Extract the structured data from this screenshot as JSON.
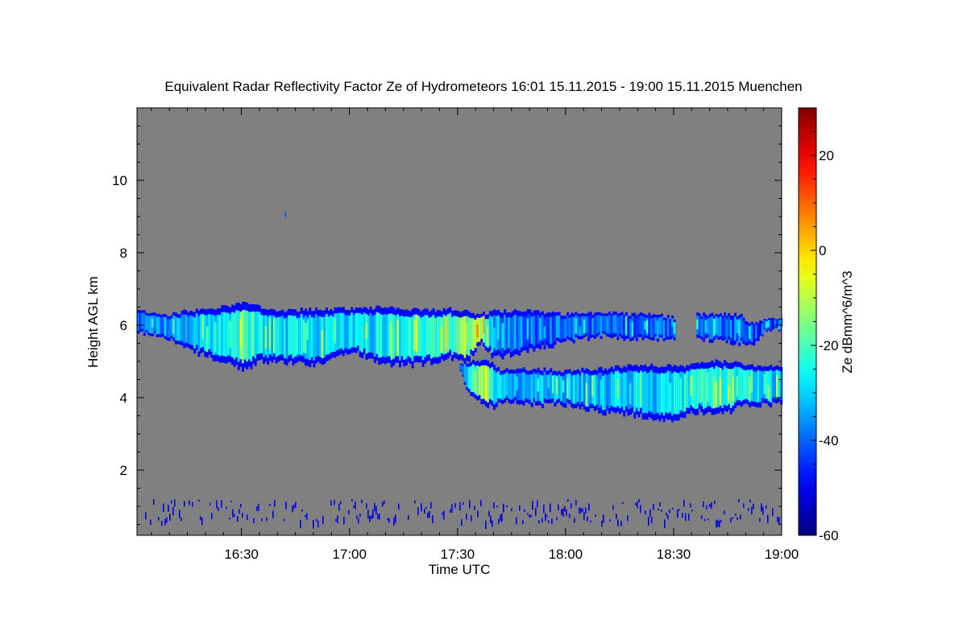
{
  "chart_data": {
    "type": "heatmap",
    "title": "Equivalent Radar Reflectivity Factor Ze of Hydrometeors   16:01 15.11.2015 - 19:00 15.11.2015 Muenchen",
    "xlabel": "Time UTC",
    "ylabel": "Height AGL km",
    "colorbar_label": "Ze dBmm^6/m^3",
    "x_range_minutes_utc": [
      961,
      1140
    ],
    "x_ticks": [
      {
        "label": "16:30",
        "value": 990
      },
      {
        "label": "17:00",
        "value": 1020
      },
      {
        "label": "17:30",
        "value": 1050
      },
      {
        "label": "18:00",
        "value": 1080
      },
      {
        "label": "18:30",
        "value": 1110
      },
      {
        "label": "19:00",
        "value": 1140
      }
    ],
    "ylim": [
      0.2,
      12.0
    ],
    "y_ticks": [
      2,
      4,
      6,
      8,
      10
    ],
    "clim": [
      -60,
      30
    ],
    "colorbar_ticks": [
      20,
      0,
      -20,
      -40,
      -60
    ],
    "colormap": "jet",
    "background_color": "#808080",
    "layers": [
      {
        "name": "upper",
        "t": [
          961,
          970,
          975,
          985,
          990,
          995,
          1000,
          1010,
          1020,
          1030,
          1040,
          1048,
          1052,
          1056,
          1060,
          1070,
          1080,
          1090,
          1100,
          1105,
          1110,
          1112,
          1116,
          1122,
          1128,
          1132,
          1136,
          1140
        ],
        "top": [
          6.4,
          6.3,
          6.4,
          6.5,
          6.6,
          6.5,
          6.4,
          6.45,
          6.45,
          6.5,
          6.4,
          6.45,
          6.4,
          6.3,
          6.4,
          6.4,
          6.3,
          6.35,
          6.3,
          6.3,
          6.2,
          null,
          6.3,
          6.3,
          6.3,
          6.0,
          6.2,
          6.2
        ],
        "base": [
          5.8,
          5.6,
          5.3,
          5.0,
          4.75,
          5.0,
          5.0,
          4.9,
          5.3,
          4.9,
          4.9,
          5.1,
          4.9,
          5.5,
          5.1,
          5.3,
          5.55,
          5.7,
          5.6,
          5.6,
          5.6,
          null,
          5.6,
          5.6,
          5.5,
          5.5,
          5.9,
          5.9
        ],
        "mean_ze": [
          -40,
          -35,
          -32,
          -28,
          -20,
          -26,
          -30,
          -28,
          -30,
          -26,
          -25,
          -20,
          -14,
          -6,
          -35,
          -40,
          -38,
          -40,
          -40,
          -40,
          -42,
          null,
          -38,
          -38,
          -40,
          -42,
          -44,
          -44
        ]
      },
      {
        "name": "lower",
        "t": [
          1050,
          1052,
          1055,
          1058,
          1060,
          1062,
          1070,
          1080,
          1090,
          1100,
          1105,
          1110,
          1115,
          1120,
          1125,
          1130,
          1140
        ],
        "top": [
          4.9,
          5.0,
          5.0,
          5.0,
          4.9,
          4.75,
          4.8,
          4.75,
          4.8,
          4.9,
          4.9,
          4.85,
          4.9,
          5.0,
          5.0,
          4.9,
          4.85
        ],
        "base": [
          4.9,
          4.2,
          3.9,
          3.8,
          3.7,
          3.9,
          3.8,
          3.8,
          3.6,
          3.5,
          3.4,
          3.3,
          3.6,
          3.6,
          3.6,
          3.8,
          3.8
        ],
        "mean_ze": [
          -40,
          -30,
          -18,
          -10,
          -25,
          -34,
          -33,
          -33,
          -32,
          -30,
          -30,
          -28,
          -26,
          -24,
          -22,
          -26,
          -30
        ]
      }
    ],
    "noise_band_km": [
      0.6,
      1.2
    ],
    "speck": {
      "t": 1002,
      "height": 9.05
    }
  }
}
